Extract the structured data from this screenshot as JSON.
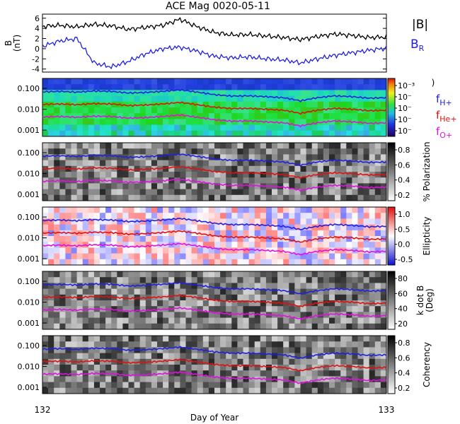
{
  "chart_data": [
    {
      "type": "line",
      "title": "ACE Mag 0020-05-11",
      "ylabel": [
        "B",
        "(nT)"
      ],
      "yticks": [
        -4,
        -2,
        0,
        2,
        4,
        6
      ],
      "ylim": [
        -4.6,
        6.8
      ],
      "x": [
        132.0,
        132.05,
        132.1,
        132.15,
        132.2,
        132.25,
        132.3,
        132.35,
        132.4,
        132.45,
        132.5,
        132.55,
        132.6,
        132.65,
        132.7,
        132.75,
        132.8,
        132.85,
        132.9,
        132.95,
        133.0
      ],
      "series": [
        {
          "name": "|B|",
          "color": "#000000",
          "values": [
            4.4,
            4.6,
            4.3,
            4.8,
            4.5,
            3.8,
            4.2,
            4.6,
            5.8,
            4.3,
            3.2,
            2.7,
            2.8,
            2.5,
            2.2,
            1.8,
            2.4,
            2.9,
            2.6,
            2.2,
            2.3
          ]
        },
        {
          "name": "B_R",
          "color": "#2020e0",
          "values": [
            0.5,
            1.5,
            2.0,
            -2.8,
            -3.6,
            -2.5,
            -1.0,
            0.0,
            0.3,
            -0.5,
            -1.5,
            -1.8,
            -1.6,
            -2.0,
            -2.2,
            -2.8,
            -2.0,
            -1.3,
            -0.8,
            -0.3,
            0.1
          ]
        }
      ]
    },
    {
      "type": "heatmap",
      "yticks": [
        "0.100",
        "0.010",
        "0.001"
      ],
      "colorbar_ticks": [
        "10⁻³",
        "10⁻",
        "10⁻",
        "10⁻",
        "10⁻"
      ],
      "colorbar_label": ")",
      "legend": [
        {
          "label": "f",
          "sub": "H+",
          "color": "#2020e0"
        },
        {
          "label": "f",
          "sub": "He+",
          "color": "#e01010"
        },
        {
          "label": "f",
          "sub": "O+",
          "color": "#e010e0"
        }
      ]
    },
    {
      "type": "heatmap",
      "yticks": [
        "0.100",
        "0.010",
        "0.001"
      ],
      "colorbar_ticks": [
        "0.8",
        "0.6",
        "0.4",
        "0.2"
      ],
      "colorbar_label": "% Polarization"
    },
    {
      "type": "heatmap",
      "yticks": [
        "0.100",
        "0.010",
        "0.001"
      ],
      "colorbar_ticks": [
        "1.0",
        "0.5",
        "0.0",
        "-0.5"
      ],
      "colorbar_label": "Ellipticity"
    },
    {
      "type": "heatmap",
      "yticks": [
        "0.100",
        "0.010",
        "0.001"
      ],
      "colorbar_ticks": [
        "80",
        "60",
        "40",
        "20"
      ],
      "colorbar_label": [
        "k dot B",
        "(Deg)"
      ]
    },
    {
      "type": "heatmap",
      "yticks": [
        "0.100",
        "0.010",
        "0.001"
      ],
      "colorbar_ticks": [
        "0.8",
        "0.6",
        "0.4",
        "0.2"
      ],
      "colorbar_label": "Coherency"
    }
  ],
  "gyro_curves": {
    "x": [
      132.0,
      132.05,
      132.1,
      132.15,
      132.2,
      132.25,
      132.3,
      132.35,
      132.4,
      132.45,
      132.5,
      132.55,
      132.6,
      132.65,
      132.7,
      132.75,
      132.8,
      132.85,
      132.9,
      132.95,
      133.0
    ],
    "f_H": [
      0.068,
      0.072,
      0.066,
      0.075,
      0.072,
      0.06,
      0.064,
      0.072,
      0.085,
      0.066,
      0.05,
      0.043,
      0.044,
      0.04,
      0.036,
      0.025,
      0.036,
      0.044,
      0.04,
      0.034,
      0.036
    ]
  },
  "xaxis": {
    "ticks": [
      "132",
      "133"
    ],
    "label": "Day of Year",
    "range": [
      132,
      133
    ]
  }
}
